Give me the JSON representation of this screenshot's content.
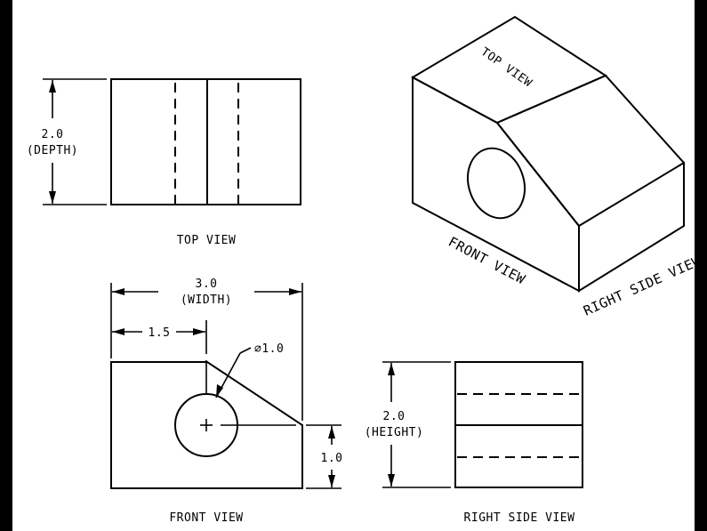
{
  "views": {
    "top": {
      "label": "TOP VIEW"
    },
    "front": {
      "label": "FRONT VIEW"
    },
    "right_side": {
      "label": "RIGHT SIDE VIEW"
    },
    "isometric": {
      "top_label": "TOP VIEW",
      "front_label": "FRONT VIEW",
      "right_side_label": "RIGHT SIDE VIEW"
    }
  },
  "dimensions": {
    "depth": {
      "value": "2.0",
      "name": "(DEPTH)"
    },
    "width": {
      "value": "3.0",
      "name": "(WIDTH)"
    },
    "offset": {
      "value": "1.5"
    },
    "hole": {
      "value": "⌀1.0"
    },
    "step": {
      "value": "1.0"
    },
    "height": {
      "value": "2.0",
      "name": "(HEIGHT)"
    }
  }
}
